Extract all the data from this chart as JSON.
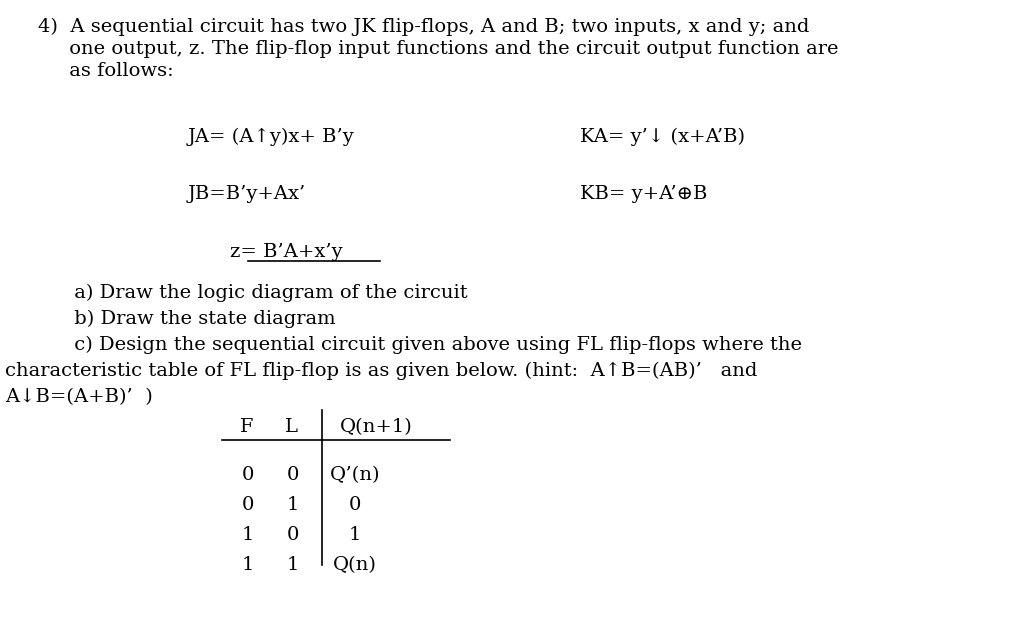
{
  "bg_color": "#ffffff",
  "text_color": "#000000",
  "figsize": [
    10.12,
    6.41
  ],
  "dpi": 100,
  "line1": "4)  A sequential circuit has two JK flip-flops, A and B; two inputs, x and y; and",
  "line2": "     one output, z. The flip-flop input functions and the circuit output function are",
  "line3": "     as follows:",
  "ja_label": "JA= (A↑y)x+ B’y",
  "ka_label": "KA= y’↓ (x+A’B)",
  "jb_label": "JB=B’y+Ax’",
  "kb_label": "KB= y+A’⊕B",
  "z_label": "z= B’A+x’y",
  "part_a": " a) Draw the logic diagram of the circuit",
  "part_b": " b) Draw the state diagram",
  "part_c": " c) Design the sequential circuit given above using FL flip-flops where the",
  "part_c2": "characteristic table of FL flip-flop is as given below. (hint:  A↑B=(AB)’   and",
  "part_c3": "A↓B=(A+B)’  )",
  "table_headers": [
    "F",
    "L",
    "Q(n+1)"
  ],
  "table_rows": [
    [
      "0",
      "0",
      "Q’(n)"
    ],
    [
      "0",
      "1",
      "0"
    ],
    [
      "1",
      "0",
      "1"
    ],
    [
      "1",
      "1",
      "Q(n)"
    ]
  ]
}
